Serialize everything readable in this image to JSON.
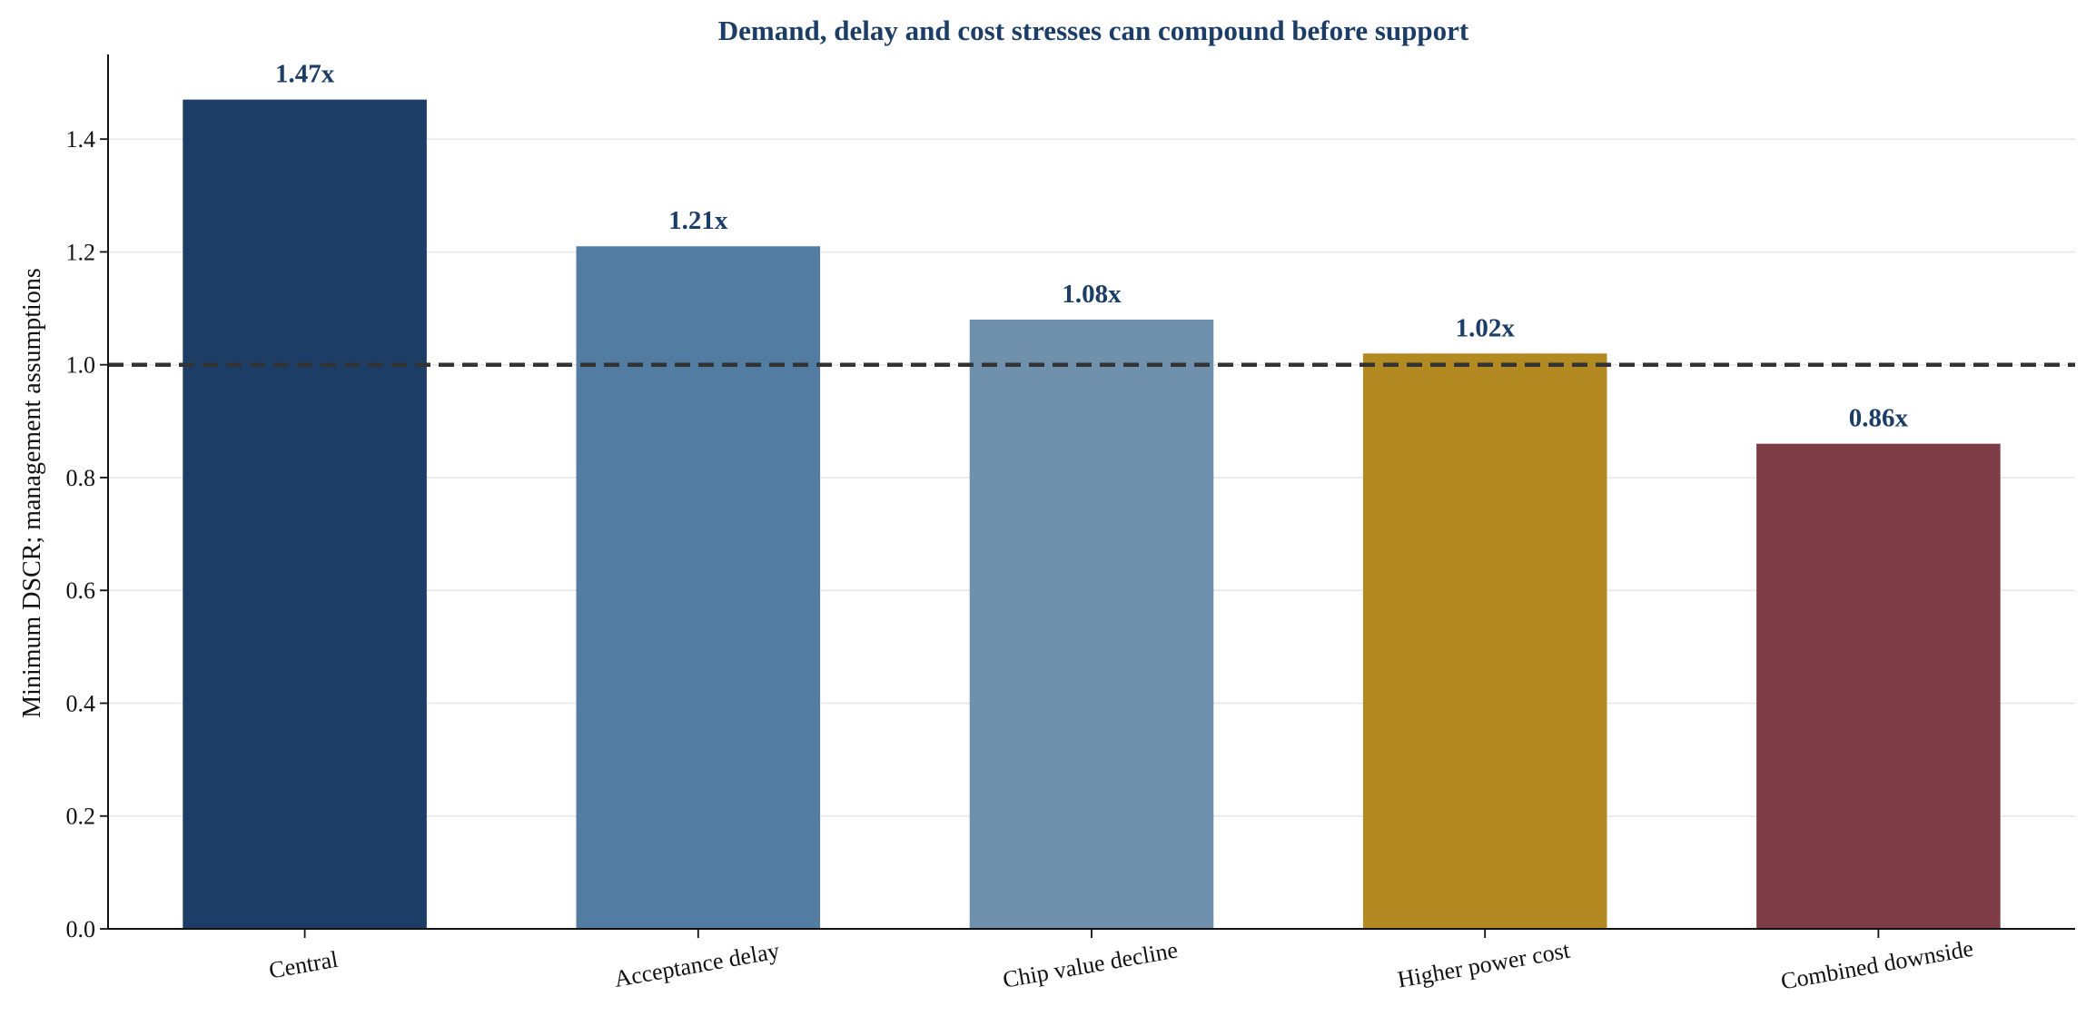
{
  "chart_data": {
    "type": "bar",
    "title": "Demand, delay and cost stresses can compound before support",
    "xlabel": "",
    "ylabel": "Minimum DSCR; management assumptions",
    "categories": [
      "Central",
      "Acceptance delay",
      "Chip value decline",
      "Higher power cost",
      "Combined downside"
    ],
    "values": [
      1.47,
      1.21,
      1.08,
      1.02,
      0.86
    ],
    "data_labels": [
      "1.47x",
      "1.21x",
      "1.08x",
      "1.02x",
      "0.86x"
    ],
    "bar_colors": [
      "#1b3d66",
      "#527ca1",
      "#6f91ad",
      "#b38a22",
      "#7e3c47"
    ],
    "ylim": [
      0,
      1.55
    ],
    "yticks": [
      0.0,
      0.2,
      0.4,
      0.6,
      0.8,
      1.0,
      1.2,
      1.4
    ],
    "ytick_labels": [
      "0.0",
      "0.2",
      "0.4",
      "0.6",
      "0.8",
      "1.0",
      "1.2",
      "1.4"
    ],
    "reference_line": {
      "value": 1.0,
      "style": "dashed",
      "color": "#333333"
    },
    "grid": "horizontal",
    "legend": "none",
    "title_color": "#1b3d66",
    "data_label_color": "#1b3d66"
  }
}
